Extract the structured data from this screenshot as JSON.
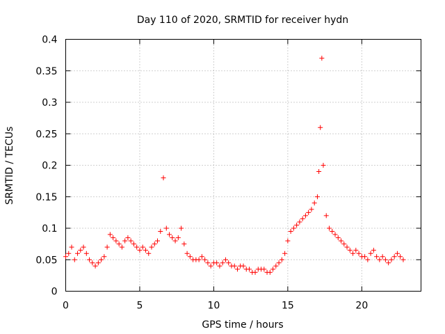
{
  "chart_data": {
    "type": "scatter",
    "title": "Day 110 of 2020, SRMTID for receiver hydn",
    "xlabel": "GPS time / hours",
    "ylabel": "SRMTID / TECUs",
    "xlim": [
      0,
      24
    ],
    "ylim": [
      0,
      0.4
    ],
    "xticks": [
      "0",
      "5",
      "10",
      "15",
      "20"
    ],
    "yticks": [
      "0",
      "0.05",
      "0.1",
      "0.15",
      "0.2",
      "0.25",
      "0.3",
      "0.35",
      "0.4"
    ],
    "marker": "+",
    "color": "#ff0000",
    "grid": true,
    "series": [
      {
        "name": "SRMTID",
        "x": [
          0.0,
          0.2,
          0.4,
          0.6,
          0.8,
          1.0,
          1.2,
          1.4,
          1.6,
          1.8,
          2.0,
          2.2,
          2.4,
          2.6,
          2.8,
          3.0,
          3.2,
          3.4,
          3.6,
          3.8,
          4.0,
          4.2,
          4.4,
          4.6,
          4.8,
          5.0,
          5.2,
          5.4,
          5.6,
          5.8,
          6.0,
          6.2,
          6.4,
          6.6,
          6.8,
          7.0,
          7.2,
          7.4,
          7.6,
          7.8,
          8.0,
          8.2,
          8.4,
          8.6,
          8.8,
          9.0,
          9.2,
          9.4,
          9.6,
          9.8,
          10.0,
          10.2,
          10.4,
          10.6,
          10.8,
          11.0,
          11.2,
          11.4,
          11.6,
          11.8,
          12.0,
          12.2,
          12.4,
          12.6,
          12.8,
          13.0,
          13.2,
          13.4,
          13.6,
          13.8,
          14.0,
          14.2,
          14.4,
          14.6,
          14.8,
          15.0,
          15.2,
          15.4,
          15.6,
          15.8,
          16.0,
          16.2,
          16.4,
          16.6,
          16.8,
          17.0,
          17.1,
          17.2,
          17.3,
          17.4,
          17.6,
          17.8,
          18.0,
          18.2,
          18.4,
          18.6,
          18.8,
          19.0,
          19.2,
          19.4,
          19.6,
          19.8,
          20.0,
          20.2,
          20.4,
          20.6,
          20.8,
          21.0,
          21.2,
          21.4,
          21.6,
          21.8,
          22.0,
          22.2,
          22.4,
          22.6,
          22.8
        ],
        "y": [
          0.055,
          0.06,
          0.07,
          0.05,
          0.06,
          0.065,
          0.07,
          0.06,
          0.05,
          0.045,
          0.04,
          0.045,
          0.05,
          0.055,
          0.07,
          0.09,
          0.085,
          0.08,
          0.075,
          0.07,
          0.08,
          0.085,
          0.08,
          0.075,
          0.07,
          0.065,
          0.07,
          0.065,
          0.06,
          0.07,
          0.075,
          0.08,
          0.095,
          0.18,
          0.1,
          0.09,
          0.085,
          0.08,
          0.085,
          0.1,
          0.075,
          0.06,
          0.055,
          0.05,
          0.05,
          0.05,
          0.055,
          0.05,
          0.045,
          0.04,
          0.045,
          0.045,
          0.04,
          0.045,
          0.05,
          0.045,
          0.04,
          0.04,
          0.035,
          0.04,
          0.04,
          0.035,
          0.035,
          0.03,
          0.03,
          0.035,
          0.035,
          0.035,
          0.03,
          0.03,
          0.035,
          0.04,
          0.045,
          0.05,
          0.06,
          0.08,
          0.095,
          0.1,
          0.105,
          0.11,
          0.115,
          0.12,
          0.125,
          0.13,
          0.14,
          0.15,
          0.19,
          0.26,
          0.37,
          0.2,
          0.12,
          0.1,
          0.095,
          0.09,
          0.085,
          0.08,
          0.075,
          0.07,
          0.065,
          0.06,
          0.065,
          0.06,
          0.055,
          0.055,
          0.05,
          0.06,
          0.065,
          0.055,
          0.05,
          0.055,
          0.05,
          0.045,
          0.05,
          0.055,
          0.06,
          0.055,
          0.05
        ]
      }
    ]
  }
}
